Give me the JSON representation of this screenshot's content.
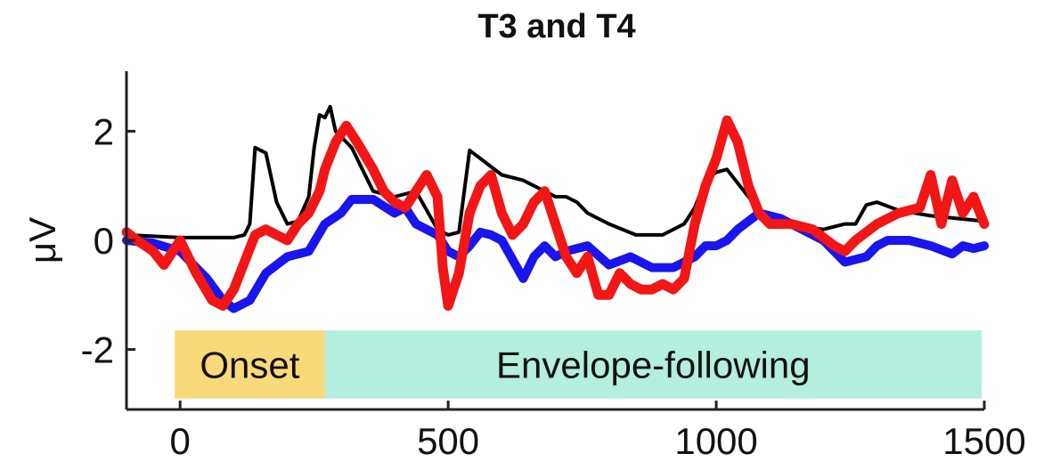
{
  "chart_data": {
    "type": "line",
    "title": "T3 and T4",
    "xlabel": "",
    "ylabel": "μV",
    "xlim": [
      -100,
      1500
    ],
    "ylim": [
      -3.1,
      3.1
    ],
    "xticks": [
      0,
      500,
      1000,
      1500
    ],
    "yticks": [
      -2,
      0,
      2
    ],
    "grid": false,
    "legend": "none",
    "bands": [
      {
        "label": "Onset",
        "x_start": -10,
        "x_end": 270,
        "y_low": -2.9,
        "y_high": -1.65,
        "color": "#fad97a"
      },
      {
        "label": "Envelope-following",
        "x_start": 270,
        "x_end": 1495,
        "y_low": -2.9,
        "y_high": -1.65,
        "color": "#b4eedf"
      }
    ],
    "series": [
      {
        "color": "#000000",
        "x": [
          -100,
          0,
          100,
          120,
          130,
          140,
          160,
          180,
          200,
          220,
          240,
          250,
          260,
          270,
          280,
          290,
          300,
          320,
          340,
          360,
          400,
          440,
          480,
          500,
          520,
          540,
          560,
          600,
          640,
          680,
          700,
          720,
          740,
          760,
          800,
          850,
          900,
          940,
          960,
          980,
          1000,
          1020,
          1040,
          1080,
          1120,
          1160,
          1200,
          1240,
          1260,
          1280,
          1300,
          1340,
          1400,
          1500
        ],
        "y": [
          0.1,
          0.05,
          0.05,
          0.1,
          0.3,
          1.7,
          1.6,
          0.7,
          0.3,
          0.35,
          0.8,
          1.7,
          2.3,
          2.25,
          2.45,
          2.0,
          1.9,
          1.7,
          1.3,
          0.9,
          0.8,
          0.9,
          0.2,
          0.1,
          0.15,
          1.65,
          1.5,
          1.2,
          1.1,
          0.9,
          0.8,
          0.8,
          0.7,
          0.5,
          0.3,
          0.1,
          0.1,
          0.3,
          0.6,
          1.1,
          1.25,
          1.3,
          1.05,
          0.55,
          0.35,
          0.25,
          0.2,
          0.3,
          0.3,
          0.65,
          0.7,
          0.55,
          0.45,
          0.35
        ]
      },
      {
        "color": "#1a14ee",
        "x": [
          -100,
          -50,
          0,
          50,
          80,
          100,
          130,
          160,
          200,
          240,
          270,
          300,
          320,
          360,
          400,
          420,
          440,
          480,
          500,
          520,
          540,
          560,
          580,
          600,
          640,
          660,
          680,
          700,
          720,
          760,
          800,
          840,
          880,
          920,
          960,
          980,
          1000,
          1020,
          1040,
          1080,
          1120,
          1160,
          1200,
          1240,
          1280,
          1300,
          1320,
          1360,
          1400,
          1440,
          1460,
          1480,
          1500
        ],
        "y": [
          0.0,
          -0.05,
          -0.2,
          -0.7,
          -1.1,
          -1.25,
          -1.1,
          -0.6,
          -0.3,
          -0.2,
          0.3,
          0.5,
          0.75,
          0.75,
          0.5,
          0.6,
          0.3,
          0.1,
          -0.2,
          -0.3,
          -0.1,
          0.15,
          0.1,
          0.0,
          -0.7,
          -0.3,
          -0.1,
          -0.3,
          -0.2,
          -0.1,
          -0.45,
          -0.3,
          -0.5,
          -0.5,
          -0.3,
          -0.1,
          -0.1,
          0.0,
          0.2,
          0.5,
          0.4,
          0.2,
          0.0,
          -0.4,
          -0.3,
          -0.1,
          0.0,
          0.0,
          -0.1,
          -0.25,
          -0.1,
          -0.15,
          -0.1
        ]
      },
      {
        "color": "#f21616",
        "x": [
          -100,
          -80,
          -50,
          -30,
          0,
          30,
          60,
          80,
          100,
          120,
          140,
          160,
          180,
          200,
          220,
          240,
          260,
          270,
          290,
          310,
          330,
          360,
          380,
          400,
          420,
          440,
          460,
          480,
          490,
          500,
          520,
          540,
          560,
          580,
          600,
          620,
          640,
          660,
          680,
          700,
          720,
          740,
          760,
          780,
          800,
          820,
          840,
          860,
          880,
          900,
          920,
          940,
          960,
          980,
          1000,
          1020,
          1040,
          1060,
          1080,
          1100,
          1140,
          1180,
          1220,
          1240,
          1260,
          1300,
          1340,
          1380,
          1400,
          1420,
          1440,
          1460,
          1480,
          1500
        ],
        "y": [
          0.15,
          0.0,
          -0.2,
          -0.45,
          0.0,
          -0.6,
          -1.1,
          -1.2,
          -0.9,
          -0.4,
          0.1,
          0.2,
          0.1,
          0.0,
          0.3,
          0.5,
          0.9,
          1.3,
          1.8,
          2.1,
          1.8,
          1.3,
          0.9,
          0.7,
          0.6,
          0.9,
          1.2,
          0.8,
          -0.5,
          -1.2,
          -0.6,
          0.5,
          1.0,
          1.2,
          0.5,
          0.1,
          0.3,
          0.7,
          0.9,
          0.3,
          -0.3,
          -0.6,
          -0.3,
          -1.0,
          -1.0,
          -0.6,
          -0.8,
          -0.9,
          -0.9,
          -0.8,
          -0.9,
          -0.7,
          0.3,
          1.0,
          1.5,
          2.2,
          1.8,
          1.0,
          0.5,
          0.3,
          0.3,
          0.2,
          -0.1,
          -0.2,
          0.0,
          0.3,
          0.5,
          0.6,
          1.2,
          0.3,
          1.1,
          0.5,
          0.8,
          0.3
        ]
      }
    ]
  }
}
